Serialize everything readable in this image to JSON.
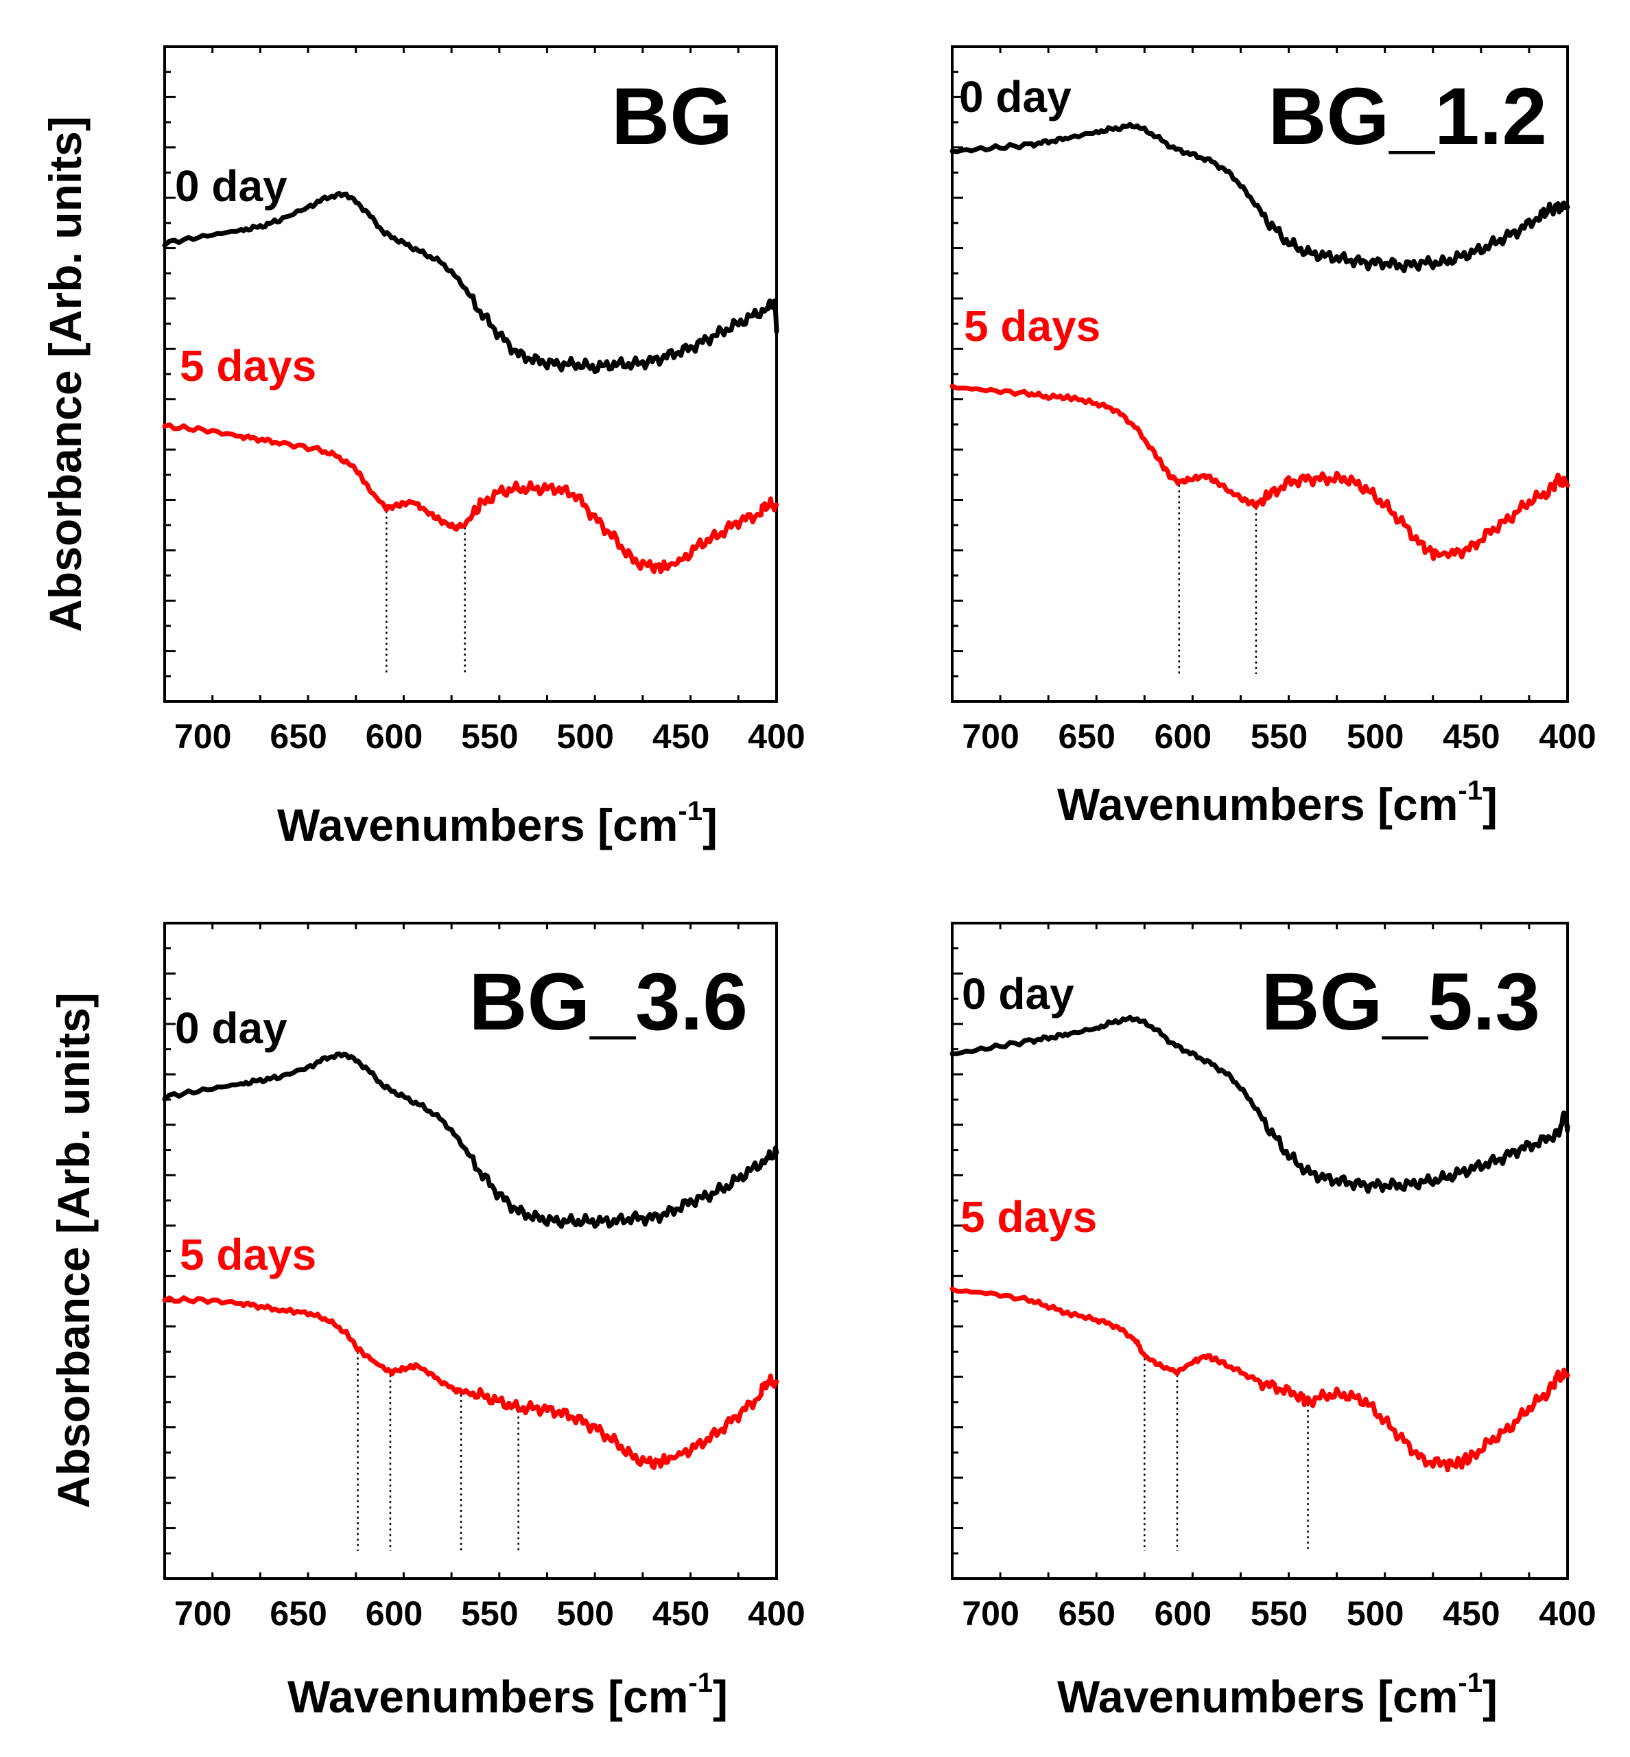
{
  "colors": {
    "day0": "#000000",
    "day5": "#ff0000",
    "axis": "#000000",
    "marker": "#000000"
  },
  "shared": {
    "xlabel_main": "Wavenumbers [cm",
    "xlabel_sup": "-1",
    "xlabel_end": "]",
    "ylabel": "Absorbance [Arb. units]"
  },
  "chart_data": [
    {
      "type": "line",
      "title": "BG",
      "xlim": [
        720,
        400
      ],
      "ylim": [
        0,
        100
      ],
      "xticks": [
        700,
        650,
        600,
        550,
        500,
        450,
        400
      ],
      "xtick_labels": [
        "700",
        "650",
        "600",
        "550",
        "500",
        "450",
        "400"
      ],
      "series_labels": [
        "0 day",
        "5 days"
      ],
      "markers": [
        604,
        563
      ],
      "series": [
        {
          "name": "0 day",
          "x": [
            720,
            700,
            680,
            670,
            660,
            645,
            635,
            625,
            615,
            605,
            595,
            585,
            575,
            565,
            555,
            545,
            535,
            525,
            515,
            505,
            495,
            485,
            475,
            465,
            455,
            445,
            435,
            425,
            415,
            405,
            401,
            400
          ],
          "y": [
            70,
            71,
            72,
            72.5,
            73.5,
            75.5,
            77,
            77.5,
            75,
            71.5,
            70,
            68.5,
            67,
            64,
            59.5,
            56,
            53,
            52,
            51.5,
            51.5,
            51,
            51.5,
            51.5,
            52,
            53,
            54,
            55.5,
            57,
            58.5,
            60,
            61,
            56.5
          ]
        },
        {
          "name": "5 days",
          "x": [
            720,
            700,
            680,
            670,
            660,
            640,
            630,
            620,
            612,
            604,
            598,
            590,
            583,
            575,
            568,
            563,
            555,
            545,
            535,
            525,
            515,
            505,
            495,
            485,
            475,
            465,
            458,
            450,
            440,
            430,
            420,
            410,
            405,
            400
          ],
          "y": [
            42,
            41.5,
            40.5,
            40,
            39.5,
            38.5,
            37.5,
            35.5,
            32,
            29.5,
            30,
            30.5,
            29,
            27.5,
            26.5,
            27,
            30,
            32,
            32.5,
            32.5,
            32.5,
            31.5,
            28,
            25,
            21.5,
            20.5,
            20.5,
            21.5,
            24,
            25.5,
            27.5,
            28.5,
            30,
            30
          ]
        }
      ]
    },
    {
      "type": "line",
      "title": "BG_1.2",
      "xlim": [
        720,
        400
      ],
      "ylim": [
        0,
        100
      ],
      "xticks": [
        700,
        650,
        600,
        550,
        500,
        450,
        400
      ],
      "xtick_labels": [
        "700",
        "650",
        "600",
        "550",
        "500",
        "450",
        "400"
      ],
      "series_labels": [
        "0 day",
        "5 days"
      ],
      "markers": [
        602,
        562
      ],
      "series": [
        {
          "name": "0 day",
          "x": [
            720,
            700,
            680,
            670,
            660,
            645,
            635,
            625,
            615,
            605,
            595,
            585,
            575,
            565,
            555,
            545,
            535,
            525,
            515,
            505,
            495,
            485,
            475,
            465,
            455,
            445,
            435,
            425,
            415,
            410,
            405,
            400
          ],
          "y": [
            84,
            84.5,
            85,
            85.5,
            86,
            87,
            87.5,
            88,
            86.5,
            84.5,
            83.5,
            82.5,
            80.5,
            77,
            73,
            70,
            68.5,
            68,
            67.5,
            67,
            67,
            66.5,
            67,
            67,
            68,
            69,
            70.5,
            72,
            74,
            75,
            75.5,
            75.5
          ]
        },
        {
          "name": "5 days",
          "x": [
            720,
            700,
            680,
            670,
            660,
            645,
            635,
            625,
            615,
            607,
            602,
            595,
            588,
            580,
            570,
            562,
            555,
            545,
            535,
            525,
            515,
            505,
            495,
            485,
            475,
            468,
            460,
            450,
            440,
            430,
            420,
            410,
            405,
            400
          ],
          "y": [
            48,
            47.5,
            47,
            46.5,
            46.5,
            45.5,
            44.5,
            42,
            38,
            34.5,
            33.5,
            34,
            34.5,
            33,
            31,
            30,
            31.5,
            33.5,
            34,
            34,
            34,
            32.5,
            30,
            27,
            23.5,
            22.5,
            22.5,
            23.5,
            26,
            28,
            30.5,
            32,
            34,
            33
          ]
        }
      ]
    },
    {
      "type": "line",
      "title": "BG_3.6",
      "xlim": [
        720,
        400
      ],
      "ylim": [
        0,
        100
      ],
      "xticks": [
        700,
        650,
        600,
        550,
        500,
        450,
        400
      ],
      "xtick_labels": [
        "700",
        "650",
        "600",
        "550",
        "500",
        "450",
        "400"
      ],
      "series_labels": [
        "0 day",
        "5 days"
      ],
      "markers": [
        619,
        602,
        565,
        535
      ],
      "series": [
        {
          "name": "0 day",
          "x": [
            720,
            700,
            680,
            670,
            660,
            645,
            635,
            625,
            615,
            605,
            595,
            585,
            575,
            565,
            555,
            545,
            535,
            525,
            515,
            505,
            495,
            485,
            475,
            465,
            455,
            445,
            435,
            425,
            415,
            405,
            400
          ],
          "y": [
            73.5,
            74.5,
            75.5,
            76,
            76.5,
            78,
            79.5,
            80,
            78,
            75,
            73.5,
            72,
            70,
            66.5,
            62,
            58.5,
            56,
            55,
            54.5,
            54.5,
            54.5,
            54.5,
            55,
            55,
            56,
            57.5,
            58.5,
            60,
            62,
            64,
            65
          ]
        },
        {
          "name": "5 days",
          "x": [
            720,
            700,
            680,
            670,
            660,
            645,
            635,
            625,
            619,
            610,
            602,
            595,
            588,
            580,
            570,
            565,
            555,
            545,
            535,
            525,
            515,
            505,
            495,
            485,
            475,
            465,
            458,
            450,
            440,
            430,
            420,
            410,
            405,
            400
          ],
          "y": [
            42.5,
            42.5,
            42,
            41.5,
            41,
            40.5,
            39.5,
            37.5,
            35,
            33,
            31.5,
            32,
            32.5,
            31,
            29,
            28.5,
            28,
            27,
            26,
            26,
            25.5,
            24.5,
            23,
            21,
            18.5,
            17.5,
            18,
            19,
            20.5,
            22.5,
            25,
            27.5,
            30,
            30
          ]
        }
      ]
    },
    {
      "type": "line",
      "title": "BG_5.3",
      "xlim": [
        720,
        400
      ],
      "ylim": [
        0,
        100
      ],
      "xticks": [
        700,
        650,
        600,
        550,
        500,
        450,
        400
      ],
      "xtick_labels": [
        "700",
        "650",
        "600",
        "550",
        "500",
        "450",
        "400"
      ],
      "series_labels": [
        "0 day",
        "5 days"
      ],
      "markers": [
        620,
        603,
        535
      ],
      "series": [
        {
          "name": "0 day",
          "x": [
            720,
            700,
            680,
            670,
            660,
            645,
            635,
            625,
            615,
            605,
            595,
            585,
            575,
            565,
            555,
            545,
            535,
            525,
            515,
            505,
            495,
            485,
            475,
            465,
            455,
            445,
            435,
            425,
            415,
            405,
            401,
            400
          ],
          "y": [
            80,
            81,
            82,
            82.5,
            83,
            84,
            85,
            85.5,
            84,
            81.5,
            80,
            78.5,
            76.5,
            73,
            68.5,
            64.5,
            62,
            61,
            60.5,
            60,
            60,
            60,
            60.5,
            61,
            62,
            63,
            64,
            65.5,
            66.5,
            68,
            71,
            69
          ]
        },
        {
          "name": "5 days",
          "x": [
            720,
            700,
            680,
            670,
            660,
            645,
            635,
            625,
            620,
            612,
            603,
            595,
            588,
            580,
            570,
            560,
            550,
            540,
            535,
            525,
            515,
            505,
            495,
            485,
            475,
            465,
            458,
            450,
            440,
            430,
            420,
            410,
            405,
            400
          ],
          "y": [
            44,
            43.5,
            42.5,
            41.5,
            40.5,
            39.5,
            38.5,
            36.5,
            34,
            32.5,
            31.5,
            33,
            34,
            33,
            31.5,
            30,
            29,
            28,
            27,
            28,
            28,
            27,
            24,
            21,
            18,
            17.5,
            17.5,
            18.5,
            21,
            23,
            26,
            28.5,
            31,
            31
          ]
        }
      ]
    }
  ]
}
